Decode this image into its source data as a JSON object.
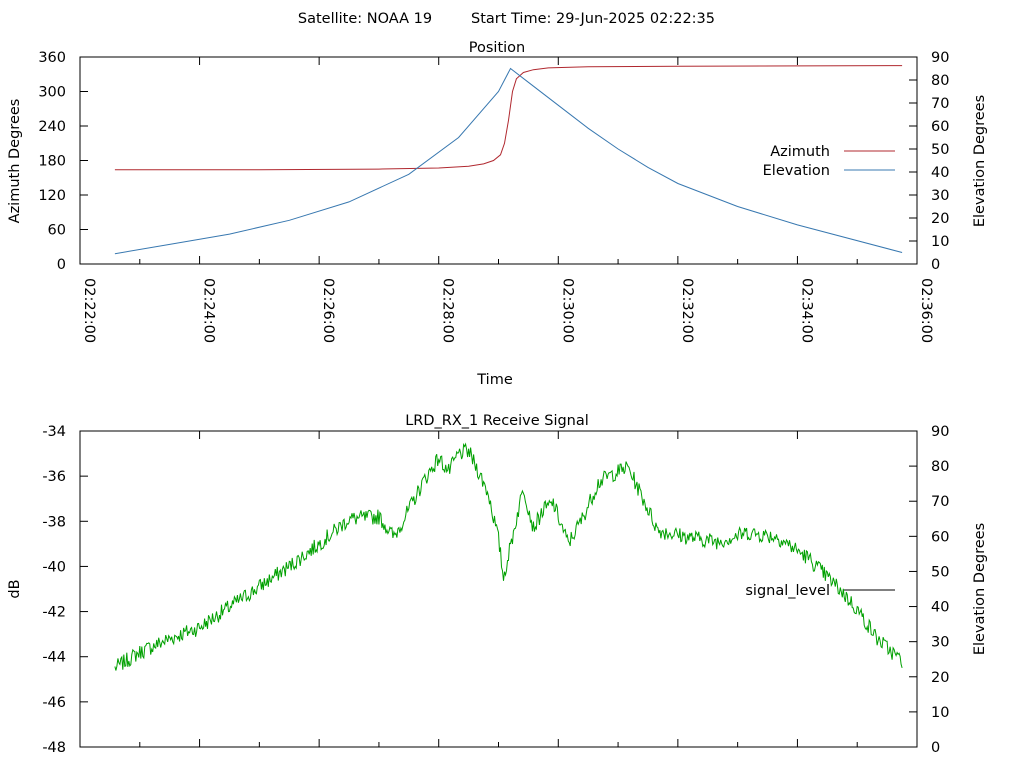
{
  "header": {
    "satellite": "Satellite: NOAA 19",
    "start_time": "Start Time: 29-Jun-2025 02:22:35"
  },
  "colors": {
    "azimuth": "#b0282f",
    "elevation": "#3878b0",
    "signal": "#00a000",
    "legend_signal_line": "#000000"
  },
  "chart_data": [
    {
      "id": "position",
      "type": "line",
      "title": "Position",
      "xlabel": "Time",
      "ylabel": "Azimuth Degrees",
      "y2label": "Elevation Degrees",
      "xlim": [
        "02:22:00",
        "02:36:00"
      ],
      "xticks": [
        "02:22:00",
        "02:24:00",
        "02:26:00",
        "02:28:00",
        "02:30:00",
        "02:32:00",
        "02:34:00",
        "02:36:00"
      ],
      "ylim": [
        0,
        360
      ],
      "yticks": [
        "0",
        "60",
        "120",
        "180",
        "240",
        "300",
        "360"
      ],
      "y2lim": [
        0,
        90
      ],
      "y2ticks": [
        "0",
        "10",
        "20",
        "30",
        "40",
        "50",
        "60",
        "70",
        "80",
        "90"
      ],
      "legend_position": "right",
      "series": [
        {
          "name": "Azimuth",
          "axis": "left",
          "x": [
            "02:22:35",
            "02:25:00",
            "02:27:00",
            "02:28:00",
            "02:28:30",
            "02:28:45",
            "02:28:55",
            "02:29:02",
            "02:29:06",
            "02:29:10",
            "02:29:14",
            "02:29:18",
            "02:29:25",
            "02:29:35",
            "02:29:50",
            "02:30:30",
            "02:32:00",
            "02:35:45"
          ],
          "values": [
            164,
            164,
            165,
            167,
            170,
            174,
            180,
            190,
            210,
            250,
            300,
            322,
            333,
            338,
            341,
            343,
            344,
            345
          ]
        },
        {
          "name": "Elevation",
          "axis": "right",
          "x": [
            "02:22:35",
            "02:23:30",
            "02:24:30",
            "02:25:30",
            "02:26:30",
            "02:27:30",
            "02:28:20",
            "02:29:00",
            "02:29:12",
            "02:29:30",
            "02:30:00",
            "02:30:30",
            "02:31:00",
            "02:31:30",
            "02:32:00",
            "02:33:00",
            "02:34:00",
            "02:35:45"
          ],
          "values": [
            4.5,
            8.5,
            13,
            19,
            27,
            39,
            55,
            75,
            85,
            79,
            69,
            59,
            50,
            42,
            35,
            25,
            17,
            5
          ]
        }
      ]
    },
    {
      "id": "signal",
      "type": "line",
      "title": "LRD_RX_1 Receive Signal",
      "ylabel": "dB",
      "y2label": "Elevation Degrees",
      "ylim": [
        -48,
        -34
      ],
      "yticks": [
        "-48",
        "-46",
        "-44",
        "-42",
        "-40",
        "-38",
        "-36",
        "-34"
      ],
      "y2lim": [
        0,
        90
      ],
      "y2ticks": [
        "0",
        "10",
        "20",
        "30",
        "40",
        "50",
        "60",
        "70",
        "80",
        "90"
      ],
      "legend_position": "right",
      "series": [
        {
          "name": "signal_level",
          "axis": "left",
          "x": [
            "02:22:35",
            "02:23:00",
            "02:23:30",
            "02:24:00",
            "02:24:30",
            "02:25:00",
            "02:25:30",
            "02:26:00",
            "02:26:30",
            "02:27:00",
            "02:27:15",
            "02:27:30",
            "02:27:45",
            "02:28:00",
            "02:28:10",
            "02:28:20",
            "02:28:30",
            "02:28:40",
            "02:28:50",
            "02:29:00",
            "02:29:05",
            "02:29:15",
            "02:29:25",
            "02:29:35",
            "02:29:45",
            "02:29:55",
            "02:30:10",
            "02:30:25",
            "02:30:40",
            "02:30:50",
            "02:31:10",
            "02:31:40",
            "02:32:10",
            "02:32:40",
            "02:33:10",
            "02:33:40",
            "02:34:10",
            "02:34:40",
            "02:35:00",
            "02:35:20",
            "02:35:45"
          ],
          "values": [
            -44.5,
            -43.8,
            -43.2,
            -42.7,
            -41.8,
            -40.9,
            -40.0,
            -39.0,
            -37.9,
            -37.8,
            -38.7,
            -37.5,
            -36.2,
            -35.2,
            -35.8,
            -35.0,
            -34.9,
            -35.8,
            -36.8,
            -38.8,
            -40.5,
            -38.5,
            -36.5,
            -38.3,
            -37.5,
            -37.2,
            -39.0,
            -37.8,
            -36.3,
            -36.0,
            -35.6,
            -38.4,
            -38.7,
            -38.9,
            -38.5,
            -38.7,
            -39.6,
            -40.9,
            -41.9,
            -43.2,
            -44.2
          ],
          "noise_db": 0.35
        }
      ]
    }
  ]
}
